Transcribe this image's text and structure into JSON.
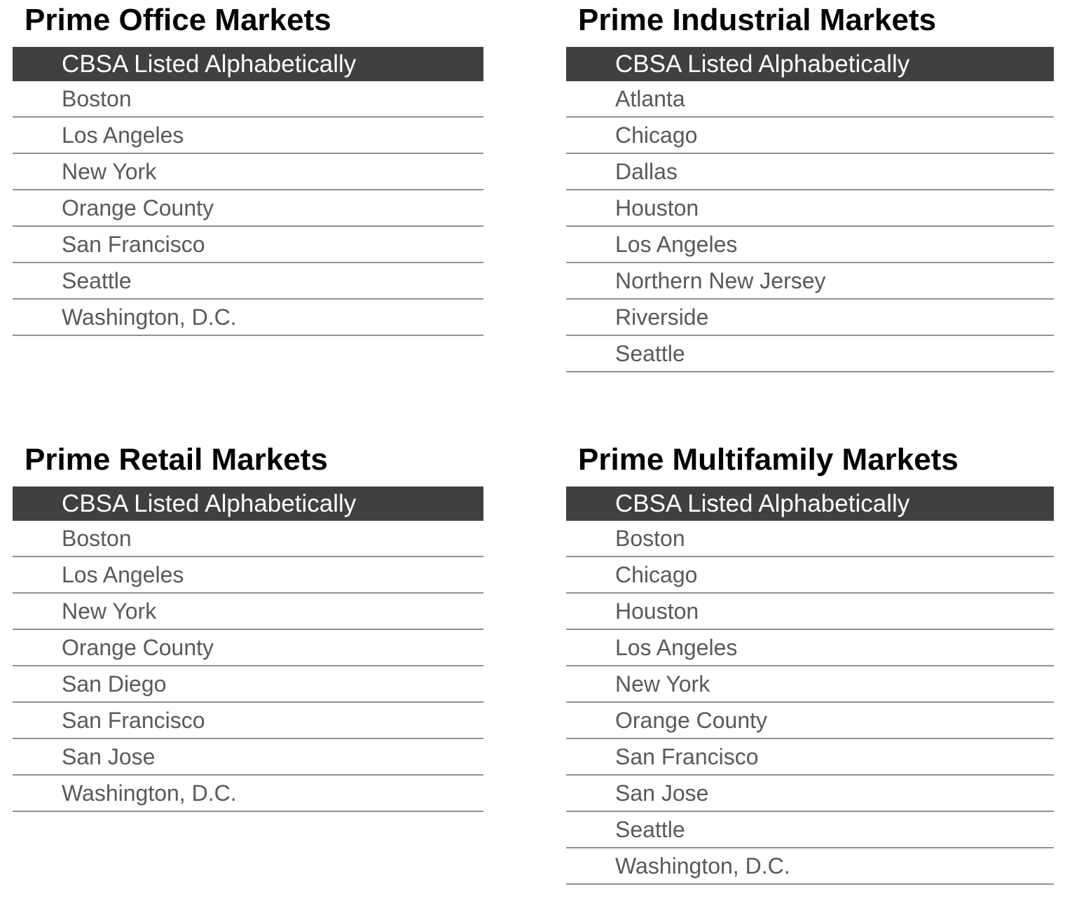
{
  "page": {
    "background": "#ffffff"
  },
  "colors": {
    "title_text": "#000000",
    "header_bg": "#404040",
    "header_text": "#ffffff",
    "row_text": "#595959",
    "row_divider": "#919191"
  },
  "tables": {
    "office": {
      "title": "Prime Office Markets",
      "header": "CBSA Listed Alphabetically",
      "rows": [
        "Boston",
        "Los Angeles",
        "New York",
        "Orange County",
        "San Francisco",
        "Seattle",
        "Washington, D.C."
      ]
    },
    "industrial": {
      "title": "Prime Industrial Markets",
      "header": "CBSA Listed Alphabetically",
      "rows": [
        "Atlanta",
        "Chicago",
        "Dallas",
        "Houston",
        "Los Angeles",
        "Northern New Jersey",
        "Riverside",
        "Seattle"
      ]
    },
    "retail": {
      "title": "Prime Retail Markets",
      "header": "CBSA Listed Alphabetically",
      "rows": [
        "Boston",
        "Los Angeles",
        "New York",
        "Orange County",
        "San Diego",
        "San Francisco",
        "San Jose",
        "Washington, D.C."
      ]
    },
    "multifamily": {
      "title": "Prime Multifamily Markets",
      "header": "CBSA Listed Alphabetically",
      "rows": [
        "Boston",
        "Chicago",
        "Houston",
        "Los Angeles",
        "New York",
        "Orange County",
        "San Francisco",
        "San Jose",
        "Seattle",
        "Washington, D.C."
      ]
    }
  }
}
